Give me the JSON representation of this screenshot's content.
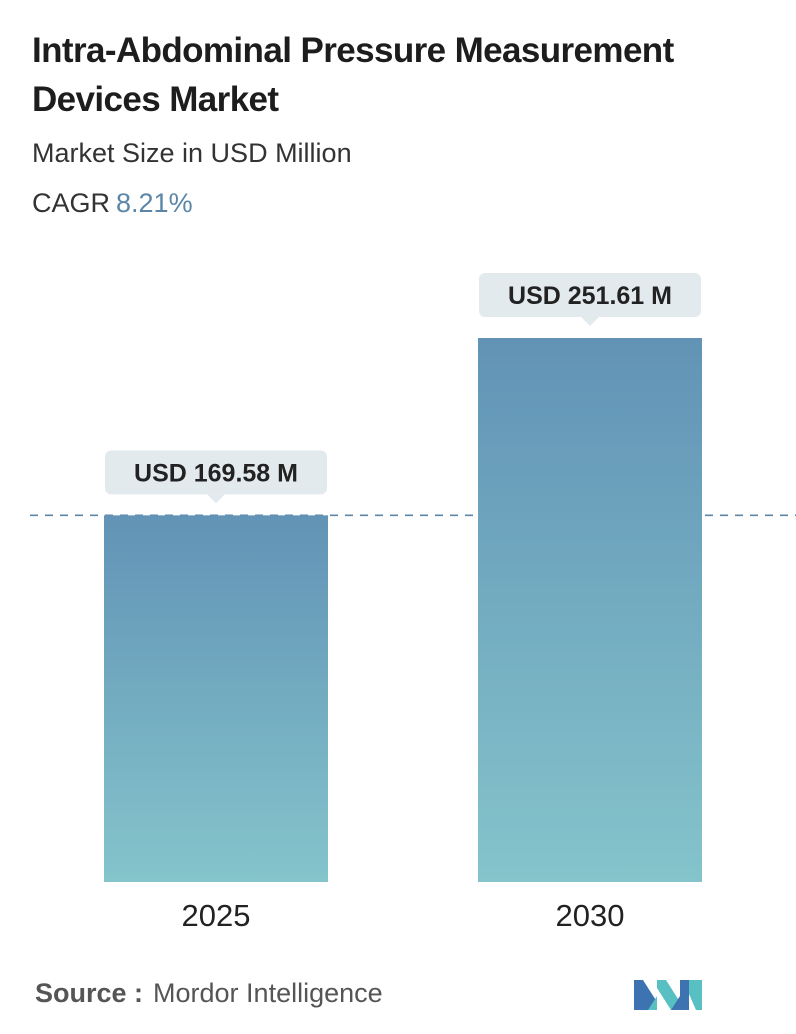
{
  "header": {
    "title": "Intra-Abdominal Pressure Measurement Devices Market",
    "subtitle": "Market Size in USD Million",
    "cagr_label": "CAGR",
    "cagr_value": "8.21%"
  },
  "chart_data": {
    "type": "bar",
    "categories": [
      "2025",
      "2030"
    ],
    "values": [
      169.58,
      251.61
    ],
    "value_labels": [
      "USD 169.58 M",
      "USD 251.61 M"
    ],
    "ylim": [
      0,
      251.61
    ],
    "grid": false,
    "reference_line": 169.58
  },
  "colors": {
    "bar_top": "#6293b6",
    "bar_bottom": "#84c4cb",
    "label_bg": "#e3eaee",
    "dashed_line": "#5b86a8"
  },
  "footer": {
    "source_label": "Source :",
    "source_name": "Mordor Intelligence"
  }
}
